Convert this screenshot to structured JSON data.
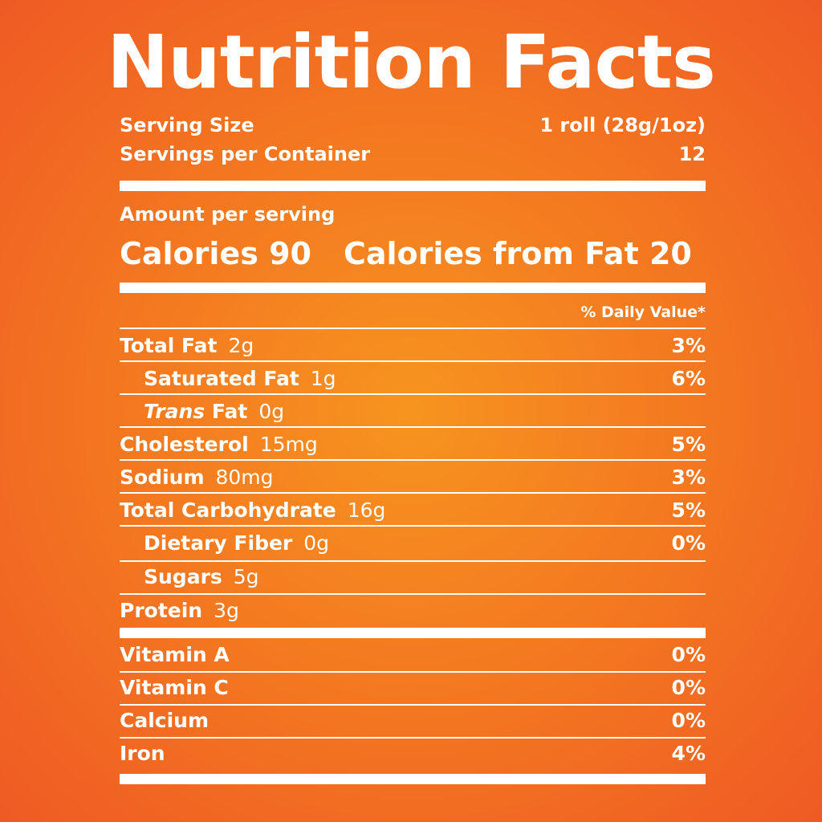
{
  "title": "Nutrition Facts",
  "serving": {
    "size_label": "Serving Size",
    "size_value": "1 roll (28g/1oz)",
    "per_container_label": "Servings per Container",
    "per_container_value": "12"
  },
  "amount_label": "Amount per serving",
  "calories": {
    "label": "Calories",
    "value": "90",
    "fat_label": "Calories from Fat",
    "fat_value": "20"
  },
  "daily_value_header": "% Daily Value*",
  "nutrients": {
    "total_fat": {
      "name": "Total Fat",
      "amount": "2g",
      "dv": "3%"
    },
    "saturated_fat": {
      "name": "Saturated Fat",
      "amount": "1g",
      "dv": "6%"
    },
    "trans_fat": {
      "name_italic": "Trans",
      "name": "Fat",
      "amount": "0g",
      "dv": ""
    },
    "cholesterol": {
      "name": "Cholesterol",
      "amount": "15mg",
      "dv": "5%"
    },
    "sodium": {
      "name": "Sodium",
      "amount": "80mg",
      "dv": "3%"
    },
    "total_carbohydrate": {
      "name": "Total Carbohydrate",
      "amount": "16g",
      "dv": "5%"
    },
    "dietary_fiber": {
      "name": "Dietary Fiber",
      "amount": "0g",
      "dv": "0%"
    },
    "sugars": {
      "name": "Sugars",
      "amount": "5g",
      "dv": ""
    },
    "protein": {
      "name": "Protein",
      "amount": "3g",
      "dv": ""
    }
  },
  "vitamins": [
    {
      "name": "Vitamin A",
      "dv": "0%"
    },
    {
      "name": "Vitamin C",
      "dv": "0%"
    },
    {
      "name": "Calcium",
      "dv": "0%"
    },
    {
      "name": "Iron",
      "dv": "4%"
    }
  ],
  "colors": {
    "background_center": "#f7941f",
    "background_edge": "#ef5a24",
    "text": "#ffffff"
  }
}
